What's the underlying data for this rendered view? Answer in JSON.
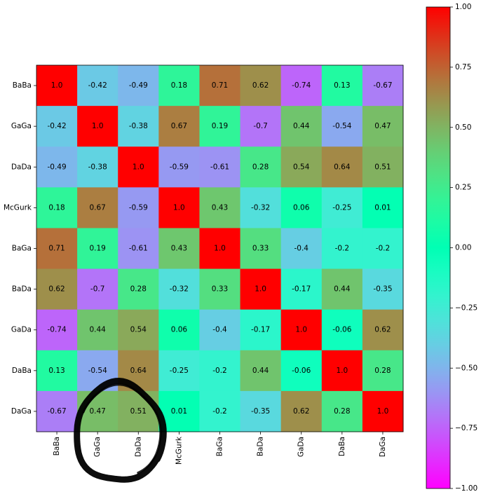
{
  "chart_data": {
    "type": "heatmap",
    "title": "",
    "xlabel": "",
    "ylabel": "",
    "row_labels": [
      "BaBa",
      "GaGa",
      "DaDa",
      "McGurk",
      "BaGa",
      "BaDa",
      "GaDa",
      "DaBa",
      "DaGa"
    ],
    "col_labels": [
      "BaBa",
      "GaGa",
      "DaDa",
      "McGurk",
      "BaGa",
      "BaDa",
      "GaDa",
      "DaBa",
      "DaGa"
    ],
    "values": [
      [
        1.0,
        -0.42,
        -0.49,
        0.18,
        0.71,
        0.62,
        -0.74,
        0.13,
        -0.67
      ],
      [
        -0.42,
        1.0,
        -0.38,
        0.67,
        0.19,
        -0.7,
        0.44,
        -0.54,
        0.47
      ],
      [
        -0.49,
        -0.38,
        1.0,
        -0.59,
        -0.61,
        0.28,
        0.54,
        0.64,
        0.51
      ],
      [
        0.18,
        0.67,
        -0.59,
        1.0,
        0.43,
        -0.32,
        0.06,
        -0.25,
        0.01
      ],
      [
        0.71,
        0.19,
        -0.61,
        0.43,
        1.0,
        0.33,
        -0.4,
        -0.2,
        -0.2
      ],
      [
        0.62,
        -0.7,
        0.28,
        -0.32,
        0.33,
        1.0,
        -0.17,
        0.44,
        -0.35
      ],
      [
        -0.74,
        0.44,
        0.54,
        0.06,
        -0.4,
        -0.17,
        1.0,
        -0.06,
        0.62
      ],
      [
        0.13,
        -0.54,
        0.64,
        -0.25,
        -0.2,
        0.44,
        -0.06,
        1.0,
        0.28
      ],
      [
        -0.67,
        0.47,
        0.51,
        0.01,
        -0.2,
        -0.35,
        0.62,
        0.28,
        1.0
      ]
    ],
    "value_labels": [
      [
        "1.0",
        "-0.42",
        "-0.49",
        "0.18",
        "0.71",
        "0.62",
        "-0.74",
        "0.13",
        "-0.67"
      ],
      [
        "-0.42",
        "1.0",
        "-0.38",
        "0.67",
        "0.19",
        "-0.7",
        "0.44",
        "-0.54",
        "0.47"
      ],
      [
        "-0.49",
        "-0.38",
        "1.0",
        "-0.59",
        "-0.61",
        "0.28",
        "0.54",
        "0.64",
        "0.51"
      ],
      [
        "0.18",
        "0.67",
        "-0.59",
        "1.0",
        "0.43",
        "-0.32",
        "0.06",
        "-0.25",
        "0.01"
      ],
      [
        "0.71",
        "0.19",
        "-0.61",
        "0.43",
        "1.0",
        "0.33",
        "-0.4",
        "-0.2",
        "-0.2"
      ],
      [
        "0.62",
        "-0.7",
        "0.28",
        "-0.32",
        "0.33",
        "1.0",
        "-0.17",
        "0.44",
        "-0.35"
      ],
      [
        "-0.74",
        "0.44",
        "0.54",
        "0.06",
        "-0.4",
        "-0.17",
        "1.0",
        "-0.06",
        "0.62"
      ],
      [
        "0.13",
        "-0.54",
        "0.64",
        "-0.25",
        "-0.2",
        "0.44",
        "-0.06",
        "1.0",
        "0.28"
      ],
      [
        "-0.67",
        "0.47",
        "0.51",
        "0.01",
        "-0.2",
        "-0.35",
        "0.62",
        "0.28",
        "1.0"
      ]
    ],
    "colormap": "rainbow",
    "vmin": -1.0,
    "vmax": 1.0,
    "colorbar": {
      "ticks": [
        -1.0,
        -0.75,
        -0.5,
        -0.25,
        0.0,
        0.25,
        0.5,
        0.75,
        1.0
      ],
      "tick_labels": [
        "−1.00",
        "−0.75",
        "−0.50",
        "−0.25",
        "0.00",
        "0.25",
        "0.50",
        "0.75",
        "1.00"
      ]
    },
    "annotation": {
      "shape": "hand-drawn-circle",
      "color": "#000000",
      "around": [
        "GaGa",
        "DaDa"
      ],
      "row": "DaGa"
    },
    "grid": false
  }
}
